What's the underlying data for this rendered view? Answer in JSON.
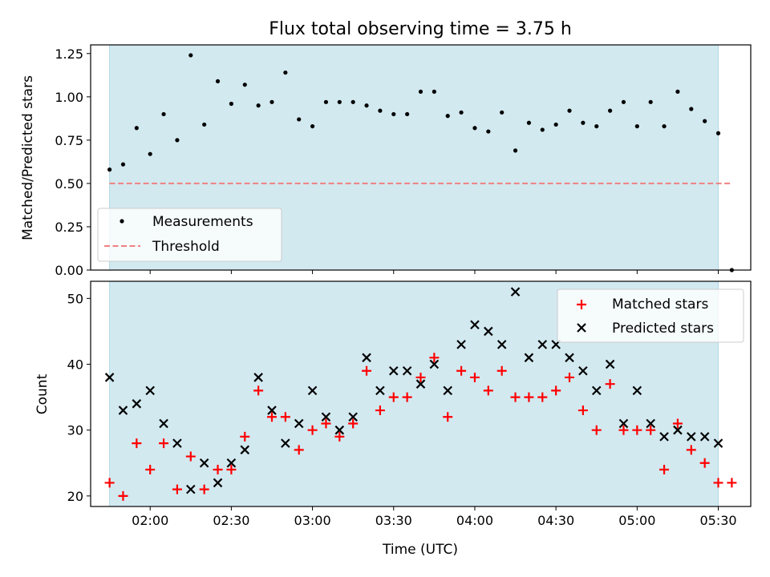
{
  "chart_data": [
    {
      "type": "scatter",
      "title": "Flux total observing time = 3.75 h",
      "xlabel": "",
      "ylabel": "Matched/Predicted stars",
      "xlim_minutes": [
        98,
        342
      ],
      "ylim": [
        0,
        1.3
      ],
      "yticks": [
        0.0,
        0.25,
        0.5,
        0.75,
        1.0,
        1.25
      ],
      "ytick_labels": [
        "0.00",
        "0.25",
        "0.50",
        "0.75",
        "1.00",
        "1.25"
      ],
      "observing_window_minutes": [
        105,
        330
      ],
      "observing_window_color": "#d2e9f0",
      "legend": {
        "position": "bottom-left",
        "entries": [
          "Measurements",
          "Threshold"
        ]
      },
      "threshold": {
        "name": "Threshold",
        "value": 0.5,
        "x_range_minutes": [
          105,
          335
        ],
        "color": "#f08080"
      },
      "series": [
        {
          "name": "Measurements",
          "color": "#000000",
          "x_minutes": [
            105,
            110,
            115,
            120,
            125,
            130,
            135,
            140,
            145,
            150,
            155,
            160,
            165,
            170,
            175,
            180,
            185,
            190,
            195,
            200,
            205,
            210,
            215,
            220,
            225,
            230,
            235,
            240,
            245,
            250,
            255,
            260,
            265,
            270,
            275,
            280,
            285,
            290,
            295,
            300,
            305,
            310,
            315,
            320,
            325,
            330,
            335
          ],
          "y": [
            0.58,
            0.61,
            0.82,
            0.67,
            0.9,
            0.75,
            1.24,
            0.84,
            1.09,
            0.96,
            1.07,
            0.95,
            0.97,
            1.14,
            0.87,
            0.83,
            0.97,
            0.97,
            0.97,
            0.95,
            0.92,
            0.9,
            0.9,
            1.03,
            1.03,
            0.89,
            0.91,
            0.82,
            0.8,
            0.91,
            0.69,
            0.85,
            0.81,
            0.84,
            0.92,
            0.85,
            0.83,
            0.92,
            0.97,
            0.83,
            0.97,
            0.83,
            1.03,
            0.93,
            0.86,
            0.79,
            0.0
          ]
        }
      ]
    },
    {
      "type": "scatter",
      "title": "",
      "xlabel": "Time (UTC)",
      "ylabel": "Count",
      "xlim_minutes": [
        98,
        342
      ],
      "ylim": [
        18.4,
        52.6
      ],
      "yticks": [
        20,
        30,
        40,
        50
      ],
      "ytick_labels": [
        "20",
        "30",
        "40",
        "50"
      ],
      "xticks_minutes": [
        120,
        150,
        180,
        210,
        240,
        270,
        300,
        330
      ],
      "xtick_labels": [
        "02:00",
        "02:30",
        "03:00",
        "03:30",
        "04:00",
        "04:30",
        "05:00",
        "05:30"
      ],
      "observing_window_minutes": [
        105,
        330
      ],
      "observing_window_color": "#d2e9f0",
      "legend": {
        "position": "top-right",
        "entries": [
          "Matched stars",
          "Predicted stars"
        ]
      },
      "series": [
        {
          "name": "Matched stars",
          "marker": "plus",
          "color": "#ff0000",
          "x_minutes": [
            105,
            110,
            115,
            120,
            125,
            130,
            135,
            140,
            145,
            150,
            155,
            160,
            165,
            170,
            175,
            180,
            185,
            190,
            195,
            200,
            205,
            210,
            215,
            220,
            225,
            230,
            235,
            240,
            245,
            250,
            255,
            260,
            265,
            270,
            275,
            280,
            285,
            290,
            295,
            300,
            305,
            310,
            315,
            320,
            325,
            330,
            335
          ],
          "y": [
            22,
            20,
            28,
            24,
            28,
            21,
            26,
            21,
            24,
            24,
            29,
            36,
            32,
            32,
            27,
            30,
            31,
            29,
            31,
            39,
            33,
            35,
            35,
            38,
            41,
            32,
            39,
            38,
            36,
            39,
            35,
            35,
            35,
            36,
            38,
            33,
            30,
            37,
            30,
            30,
            30,
            24,
            31,
            27,
            25,
            22,
            22
          ]
        },
        {
          "name": "Predicted stars",
          "marker": "x",
          "color": "#000000",
          "x_minutes": [
            105,
            110,
            115,
            120,
            125,
            130,
            135,
            140,
            145,
            150,
            155,
            160,
            165,
            170,
            175,
            180,
            185,
            190,
            195,
            200,
            205,
            210,
            215,
            220,
            225,
            230,
            235,
            240,
            245,
            250,
            255,
            260,
            265,
            270,
            275,
            280,
            285,
            290,
            295,
            300,
            305,
            310,
            315,
            320,
            325,
            330
          ],
          "y": [
            38,
            33,
            34,
            36,
            31,
            28,
            21,
            25,
            22,
            25,
            27,
            38,
            33,
            28,
            31,
            36,
            32,
            30,
            32,
            41,
            36,
            39,
            39,
            37,
            40,
            36,
            43,
            46,
            45,
            43,
            51,
            41,
            43,
            43,
            41,
            39,
            36,
            40,
            31,
            36,
            31,
            29,
            30,
            29,
            29,
            28
          ]
        }
      ]
    }
  ]
}
